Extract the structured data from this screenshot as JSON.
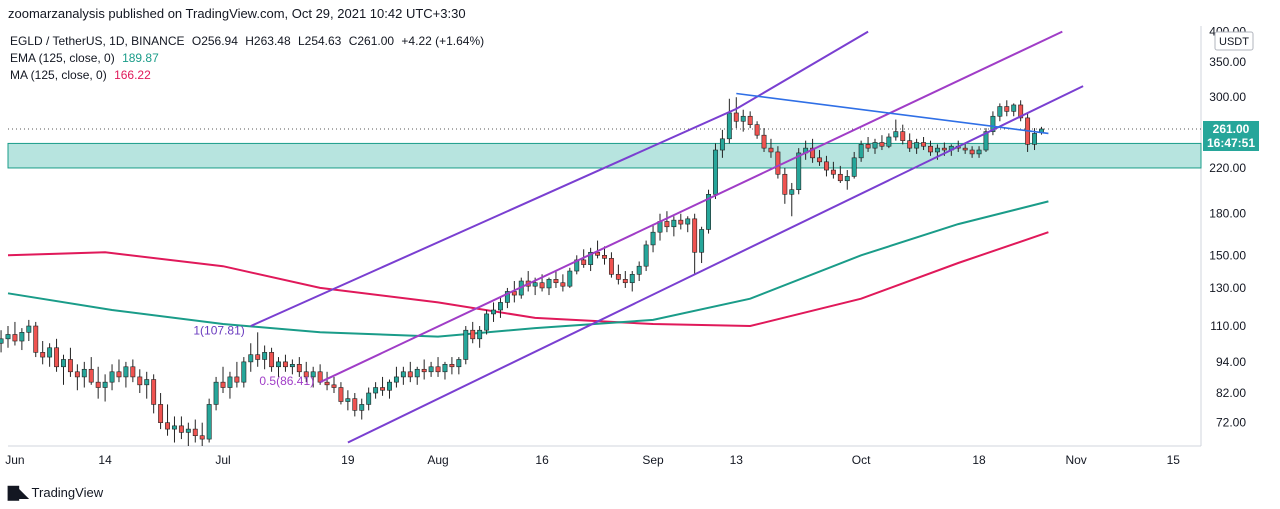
{
  "header": {
    "publish_line": "zoomarzanalysis published on TradingView.com, Oct 29, 2021 10:42 UTC+3:30"
  },
  "legend": {
    "symbol": "EGLD / TetherUS, 1D, BINANCE",
    "open_label": "O",
    "open": "256.94",
    "high_label": "H",
    "high": "263.48",
    "low_label": "L",
    "low": "254.63",
    "close_label": "C",
    "close": "261.00",
    "change": "+4.22 (+1.64%)",
    "ema_label": "EMA (125, close, 0)",
    "ema_value": "189.87",
    "ma_label": "MA (125, close, 0)",
    "ma_value": "166.22"
  },
  "price_axis": {
    "currency": "USDT",
    "last_price": "261.00",
    "countdown": "16:47:51",
    "ticks": [
      "400.00",
      "350.00",
      "300.00",
      "260.00",
      "220.00",
      "180.00",
      "150.00",
      "130.00",
      "110.00",
      "94.00",
      "82.00",
      "72.00"
    ]
  },
  "time_axis": {
    "ticks": [
      "Jun",
      "14",
      "Jul",
      "19",
      "Aug",
      "16",
      "Sep",
      "13",
      "Oct",
      "18",
      "Nov",
      "15"
    ]
  },
  "annotations": {
    "fib_1": "1(107.81)",
    "fib_05": "0.5(86.41)"
  },
  "footer": {
    "brand": "TradingView"
  },
  "colors": {
    "up": "#26a69a",
    "down": "#ef5350",
    "ema": "#1a9c89",
    "ma": "#e0195a",
    "channel": "#7a3fd1",
    "trend": "#2f6fe6",
    "zone": "#b7e4df",
    "zone_border": "#1a9c89",
    "last_price_bg": "#26a69a"
  },
  "chart_data": {
    "type": "candlestick",
    "symbol": "EGLD / TetherUS",
    "interval": "1D",
    "exchange": "BINANCE",
    "y_scale": "log",
    "ylim": [
      65,
      410
    ],
    "x_range": [
      "2021-05-31",
      "2021-11-19"
    ],
    "last": {
      "open": 256.94,
      "high": 263.48,
      "low": 254.63,
      "close": 261.0,
      "change": 4.22,
      "change_pct": 1.64
    },
    "ohlc": [
      [
        "2021-05-30",
        102,
        108,
        98,
        104
      ],
      [
        "2021-05-31",
        104,
        110,
        100,
        106
      ],
      [
        "2021-06-01",
        106,
        112,
        101,
        103
      ],
      [
        "2021-06-02",
        103,
        109,
        99,
        107
      ],
      [
        "2021-06-03",
        107,
        113,
        103,
        110
      ],
      [
        "2021-06-04",
        110,
        112,
        96,
        98
      ],
      [
        "2021-06-05",
        98,
        103,
        93,
        96
      ],
      [
        "2021-06-06",
        96,
        102,
        92,
        100
      ],
      [
        "2021-06-07",
        100,
        104,
        90,
        92
      ],
      [
        "2021-06-08",
        92,
        97,
        85,
        95
      ],
      [
        "2021-06-09",
        95,
        100,
        88,
        90
      ],
      [
        "2021-06-10",
        90,
        93,
        83,
        88
      ],
      [
        "2021-06-11",
        88,
        94,
        84,
        91
      ],
      [
        "2021-06-12",
        91,
        96,
        85,
        86
      ],
      [
        "2021-06-13",
        86,
        92,
        80,
        84
      ],
      [
        "2021-06-14",
        84,
        89,
        79,
        86
      ],
      [
        "2021-06-15",
        86,
        93,
        83,
        90
      ],
      [
        "2021-06-16",
        90,
        95,
        86,
        88
      ],
      [
        "2021-06-17",
        88,
        94,
        84,
        92
      ],
      [
        "2021-06-18",
        92,
        95,
        86,
        88
      ],
      [
        "2021-06-19",
        88,
        91,
        82,
        85
      ],
      [
        "2021-06-20",
        85,
        90,
        80,
        87
      ],
      [
        "2021-06-21",
        87,
        89,
        75,
        78
      ],
      [
        "2021-06-22",
        78,
        82,
        70,
        72
      ],
      [
        "2021-06-23",
        72,
        78,
        68,
        70
      ],
      [
        "2021-06-24",
        70,
        74,
        66,
        71
      ],
      [
        "2021-06-25",
        71,
        74,
        67,
        69
      ],
      [
        "2021-06-26",
        69,
        72,
        65,
        70
      ],
      [
        "2021-06-27",
        70,
        73,
        66,
        68
      ],
      [
        "2021-06-28",
        68,
        72,
        65,
        67
      ],
      [
        "2021-06-29",
        67,
        80,
        66,
        78
      ],
      [
        "2021-06-30",
        78,
        88,
        76,
        86
      ],
      [
        "2021-07-01",
        86,
        92,
        82,
        84
      ],
      [
        "2021-07-02",
        84,
        90,
        80,
        88
      ],
      [
        "2021-07-03",
        88,
        94,
        84,
        86
      ],
      [
        "2021-07-04",
        86,
        96,
        84,
        94
      ],
      [
        "2021-07-05",
        94,
        102,
        90,
        97
      ],
      [
        "2021-07-06",
        97,
        107,
        92,
        95
      ],
      [
        "2021-07-07",
        95,
        101,
        91,
        98
      ],
      [
        "2021-07-08",
        98,
        100,
        90,
        92
      ],
      [
        "2021-07-09",
        92,
        96,
        88,
        94
      ],
      [
        "2021-07-10",
        94,
        97,
        90,
        92
      ],
      [
        "2021-07-11",
        92,
        95,
        89,
        93
      ],
      [
        "2021-07-12",
        93,
        96,
        88,
        90
      ],
      [
        "2021-07-13",
        90,
        94,
        86,
        88
      ],
      [
        "2021-07-14",
        88,
        92,
        84,
        90
      ],
      [
        "2021-07-15",
        90,
        93,
        85,
        86
      ],
      [
        "2021-07-16",
        86,
        90,
        83,
        85
      ],
      [
        "2021-07-17",
        85,
        88,
        82,
        84
      ],
      [
        "2021-07-18",
        84,
        86,
        78,
        79
      ],
      [
        "2021-07-19",
        79,
        83,
        76,
        80
      ],
      [
        "2021-07-20",
        80,
        82,
        74,
        76
      ],
      [
        "2021-07-21",
        76,
        80,
        73,
        78
      ],
      [
        "2021-07-22",
        78,
        84,
        76,
        82
      ],
      [
        "2021-07-23",
        82,
        86,
        80,
        84
      ],
      [
        "2021-07-24",
        84,
        88,
        81,
        83
      ],
      [
        "2021-07-25",
        83,
        87,
        80,
        86
      ],
      [
        "2021-07-26",
        86,
        92,
        84,
        88
      ],
      [
        "2021-07-27",
        88,
        92,
        85,
        90
      ],
      [
        "2021-07-28",
        90,
        94,
        86,
        88
      ],
      [
        "2021-07-29",
        88,
        92,
        85,
        91
      ],
      [
        "2021-07-30",
        91,
        95,
        87,
        90
      ],
      [
        "2021-07-31",
        90,
        94,
        88,
        92
      ],
      [
        "2021-08-01",
        92,
        96,
        88,
        90
      ],
      [
        "2021-08-02",
        90,
        94,
        87,
        93
      ],
      [
        "2021-08-03",
        93,
        96,
        89,
        92
      ],
      [
        "2021-08-04",
        92,
        96,
        89,
        95
      ],
      [
        "2021-08-05",
        95,
        110,
        93,
        108
      ],
      [
        "2021-08-06",
        108,
        112,
        102,
        104
      ],
      [
        "2021-08-07",
        104,
        110,
        100,
        108
      ],
      [
        "2021-08-08",
        108,
        118,
        106,
        116
      ],
      [
        "2021-08-09",
        116,
        122,
        112,
        118
      ],
      [
        "2021-08-10",
        118,
        125,
        114,
        122
      ],
      [
        "2021-08-11",
        122,
        130,
        119,
        128
      ],
      [
        "2021-08-12",
        128,
        134,
        122,
        126
      ],
      [
        "2021-08-13",
        126,
        136,
        124,
        134
      ],
      [
        "2021-08-14",
        134,
        140,
        128,
        131
      ],
      [
        "2021-08-15",
        131,
        136,
        126,
        133
      ],
      [
        "2021-08-16",
        133,
        138,
        128,
        130
      ],
      [
        "2021-08-17",
        130,
        136,
        126,
        135
      ],
      [
        "2021-08-18",
        135,
        140,
        130,
        133
      ],
      [
        "2021-08-19",
        133,
        138,
        128,
        131
      ],
      [
        "2021-08-20",
        131,
        142,
        130,
        140
      ],
      [
        "2021-08-21",
        140,
        150,
        138,
        147
      ],
      [
        "2021-08-22",
        147,
        154,
        142,
        144
      ],
      [
        "2021-08-23",
        144,
        155,
        140,
        152
      ],
      [
        "2021-08-24",
        152,
        160,
        148,
        150
      ],
      [
        "2021-08-25",
        150,
        156,
        144,
        148
      ],
      [
        "2021-08-26",
        148,
        152,
        136,
        138
      ],
      [
        "2021-08-27",
        138,
        144,
        132,
        135
      ],
      [
        "2021-08-28",
        135,
        140,
        130,
        133
      ],
      [
        "2021-08-29",
        133,
        140,
        128,
        138
      ],
      [
        "2021-08-30",
        138,
        146,
        134,
        143
      ],
      [
        "2021-08-31",
        143,
        160,
        140,
        157
      ],
      [
        "2021-09-01",
        157,
        172,
        152,
        166
      ],
      [
        "2021-09-02",
        166,
        180,
        160,
        174
      ],
      [
        "2021-09-03",
        174,
        182,
        166,
        170
      ],
      [
        "2021-09-04",
        170,
        178,
        163,
        175
      ],
      [
        "2021-09-05",
        175,
        180,
        168,
        172
      ],
      [
        "2021-09-06",
        172,
        178,
        166,
        176
      ],
      [
        "2021-09-07",
        176,
        180,
        138,
        152
      ],
      [
        "2021-09-08",
        152,
        170,
        145,
        168
      ],
      [
        "2021-09-09",
        168,
        200,
        165,
        196
      ],
      [
        "2021-09-10",
        196,
        245,
        192,
        238
      ],
      [
        "2021-09-11",
        238,
        260,
        230,
        250
      ],
      [
        "2021-09-12",
        250,
        298,
        245,
        280
      ],
      [
        "2021-09-13",
        280,
        300,
        262,
        270
      ],
      [
        "2021-09-14",
        270,
        284,
        258,
        276
      ],
      [
        "2021-09-15",
        276,
        282,
        262,
        266
      ],
      [
        "2021-09-16",
        266,
        270,
        250,
        254
      ],
      [
        "2021-09-17",
        254,
        262,
        236,
        240
      ],
      [
        "2021-09-18",
        240,
        250,
        230,
        236
      ],
      [
        "2021-09-19",
        236,
        242,
        210,
        214
      ],
      [
        "2021-09-20",
        214,
        220,
        188,
        196
      ],
      [
        "2021-09-21",
        196,
        206,
        178,
        200
      ],
      [
        "2021-09-22",
        200,
        240,
        196,
        235
      ],
      [
        "2021-09-23",
        235,
        248,
        228,
        240
      ],
      [
        "2021-09-24",
        240,
        250,
        225,
        230
      ],
      [
        "2021-09-25",
        230,
        238,
        222,
        226
      ],
      [
        "2021-09-26",
        226,
        232,
        212,
        218
      ],
      [
        "2021-09-27",
        218,
        226,
        210,
        214
      ],
      [
        "2021-09-28",
        214,
        222,
        206,
        208
      ],
      [
        "2021-09-29",
        208,
        218,
        200,
        212
      ],
      [
        "2021-09-30",
        212,
        236,
        210,
        230
      ],
      [
        "2021-10-01",
        230,
        248,
        226,
        244
      ],
      [
        "2021-10-02",
        244,
        252,
        236,
        240
      ],
      [
        "2021-10-03",
        240,
        250,
        234,
        246
      ],
      [
        "2021-10-04",
        246,
        254,
        238,
        242
      ],
      [
        "2021-10-05",
        242,
        256,
        240,
        252
      ],
      [
        "2021-10-06",
        252,
        272,
        248,
        258
      ],
      [
        "2021-10-07",
        258,
        266,
        244,
        248
      ],
      [
        "2021-10-08",
        248,
        256,
        236,
        240
      ],
      [
        "2021-10-09",
        240,
        250,
        234,
        246
      ],
      [
        "2021-10-10",
        246,
        252,
        238,
        242
      ],
      [
        "2021-10-11",
        242,
        248,
        232,
        236
      ],
      [
        "2021-10-12",
        236,
        244,
        228,
        240
      ],
      [
        "2021-10-13",
        240,
        246,
        232,
        238
      ],
      [
        "2021-10-14",
        238,
        244,
        232,
        242
      ],
      [
        "2021-10-15",
        242,
        248,
        236,
        240
      ],
      [
        "2021-10-16",
        240,
        246,
        234,
        238
      ],
      [
        "2021-10-17",
        238,
        242,
        230,
        234
      ],
      [
        "2021-10-18",
        234,
        242,
        230,
        238
      ],
      [
        "2021-10-19",
        238,
        262,
        236,
        258
      ],
      [
        "2021-10-20",
        258,
        282,
        254,
        276
      ],
      [
        "2021-10-21",
        276,
        292,
        270,
        288
      ],
      [
        "2021-10-22",
        288,
        296,
        276,
        282
      ],
      [
        "2021-10-23",
        282,
        292,
        276,
        290
      ],
      [
        "2021-10-24",
        290,
        296,
        270,
        274
      ],
      [
        "2021-10-25",
        274,
        280,
        236,
        244
      ],
      [
        "2021-10-26",
        244,
        262,
        238,
        256
      ],
      [
        "2021-10-27",
        256.94,
        263.48,
        254.63,
        261.0
      ]
    ],
    "ema125": [
      [
        "2021-05-31",
        127
      ],
      [
        "2021-06-15",
        118
      ],
      [
        "2021-07-01",
        111
      ],
      [
        "2021-07-15",
        107
      ],
      [
        "2021-08-01",
        105
      ],
      [
        "2021-08-15",
        109
      ],
      [
        "2021-09-01",
        113
      ],
      [
        "2021-09-15",
        124
      ],
      [
        "2021-10-01",
        150
      ],
      [
        "2021-10-15",
        172
      ],
      [
        "2021-10-28",
        190
      ]
    ],
    "ma125": [
      [
        "2021-05-31",
        150
      ],
      [
        "2021-06-14",
        152
      ],
      [
        "2021-07-01",
        143
      ],
      [
        "2021-07-15",
        130
      ],
      [
        "2021-08-01",
        122
      ],
      [
        "2021-08-15",
        114
      ],
      [
        "2021-09-01",
        111
      ],
      [
        "2021-09-15",
        110
      ],
      [
        "2021-10-01",
        124
      ],
      [
        "2021-10-15",
        145
      ],
      [
        "2021-10-28",
        166
      ]
    ],
    "drawings": {
      "support_zone": [
        220,
        245
      ],
      "fib_levels": [
        {
          "label": "1(107.81)",
          "value": 107.81
        },
        {
          "label": "0.5(86.41)",
          "value": 86.41
        }
      ],
      "channel_upper": [
        [
          "2021-07-05",
          110
        ],
        [
          "2021-09-13",
          285
        ],
        [
          "2021-10-02",
          400
        ]
      ],
      "channel_mid": [
        [
          "2021-07-15",
          86
        ],
        [
          "2021-10-30",
          400
        ]
      ],
      "channel_lower": [
        [
          "2021-07-19",
          66
        ],
        [
          "2021-11-02",
          315
        ]
      ],
      "trend_line": [
        [
          "2021-09-13",
          305
        ],
        [
          "2021-10-28",
          256
        ]
      ]
    }
  }
}
